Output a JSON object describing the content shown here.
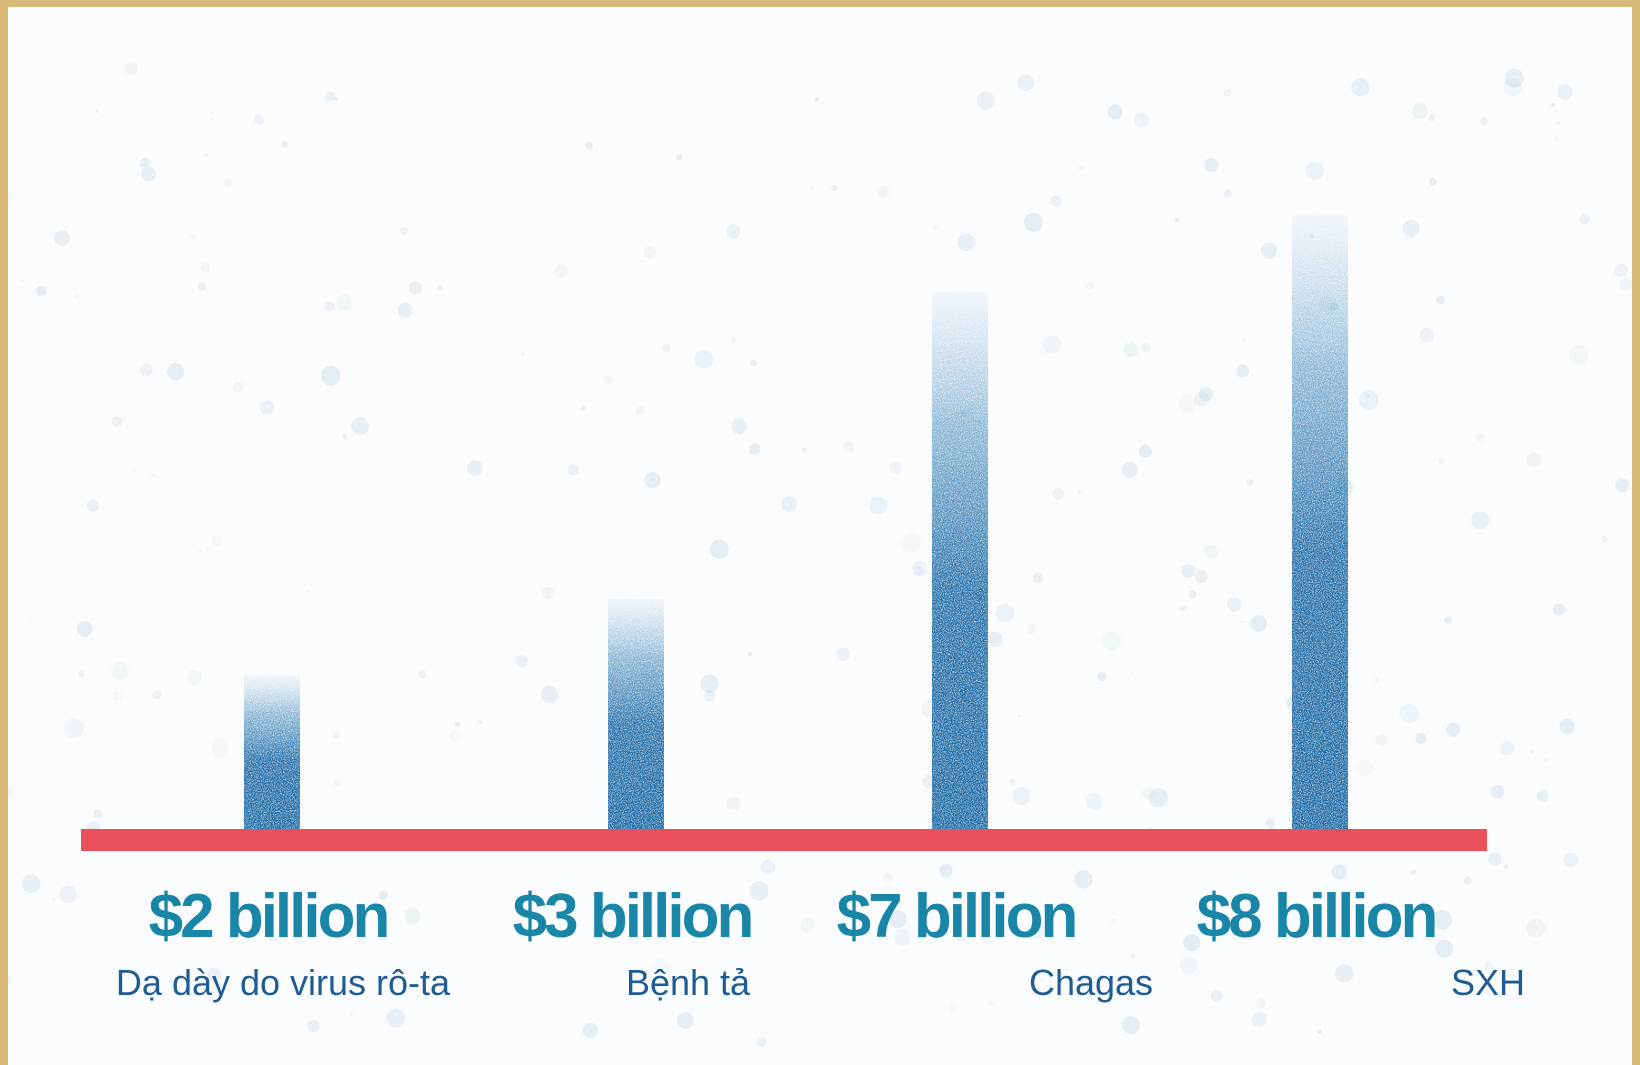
{
  "chart_data": {
    "type": "bar",
    "categories": [
      "Dạ dày do virus rô-ta",
      "Bệnh tả",
      "Chagas",
      "SXH"
    ],
    "values": [
      2,
      3,
      7,
      8
    ],
    "value_labels": [
      "$2 billion",
      "$3 billion",
      "$7 billion",
      "$8 billion"
    ],
    "units": "billion USD",
    "title": "",
    "xlabel": "",
    "ylabel": "",
    "ylim": [
      0,
      10
    ],
    "grid": false,
    "legend": "none",
    "colors": {
      "bar": "#1c6aa6",
      "baseline": "#e8505b",
      "value_label": "#1a86a7",
      "category_label": "#1f5c94",
      "frame": "#d9b978",
      "background": "#fbfcfd"
    }
  }
}
